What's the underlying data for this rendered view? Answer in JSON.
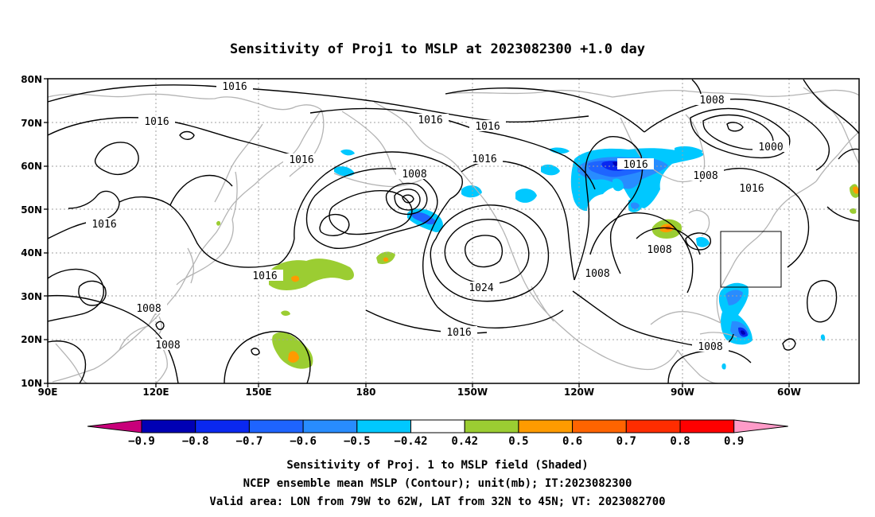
{
  "title": "Sensitivity of Proj1 to MSLP at 2023082300 +1.0 day",
  "map": {
    "lat_labels": [
      "80N",
      "70N",
      "60N",
      "50N",
      "40N",
      "30N",
      "20N",
      "10N"
    ],
    "lon_labels": [
      "90E",
      "120E",
      "150E",
      "180",
      "150W",
      "120W",
      "90W",
      "60W"
    ],
    "contour_labels": [
      "1016",
      "1016",
      "1016",
      "1016",
      "1016",
      "1016",
      "1016",
      "1016",
      "1016",
      "1016",
      "1016",
      "1008",
      "1008",
      "1008",
      "1008",
      "1008",
      "1008",
      "1008",
      "1008",
      "1000",
      "1024",
      "1016"
    ],
    "valid_box": "LON 79W-62W, LAT 32N-45N",
    "colors": {
      "coast": "#b4b4b4",
      "contour": "#000000",
      "grid": "#a0a0a0"
    }
  },
  "colorbar": {
    "labels": [
      "−0.9",
      "−0.8",
      "−0.7",
      "−0.6",
      "−0.5",
      "−0.42",
      "0.42",
      "0.5",
      "0.6",
      "0.7",
      "0.8",
      "0.9"
    ],
    "colors": [
      "#c8007a",
      "#0000b4",
      "#0a28f0",
      "#1e64ff",
      "#288cff",
      "#00c8ff",
      "#ffffff",
      "#9bcd32",
      "#ff9b00",
      "#ff6400",
      "#ff2d00",
      "#ff0000",
      "#ff9bc8"
    ]
  },
  "caption": {
    "line1": "Sensitivity of Proj. 1 to MSLP field (Shaded)",
    "line2": "NCEP ensemble mean MSLP (Contour); unit(mb); IT:2023082300",
    "line3": "Valid area: LON from 79W to 62W, LAT from 32N to 45N; VT: 2023082700"
  }
}
